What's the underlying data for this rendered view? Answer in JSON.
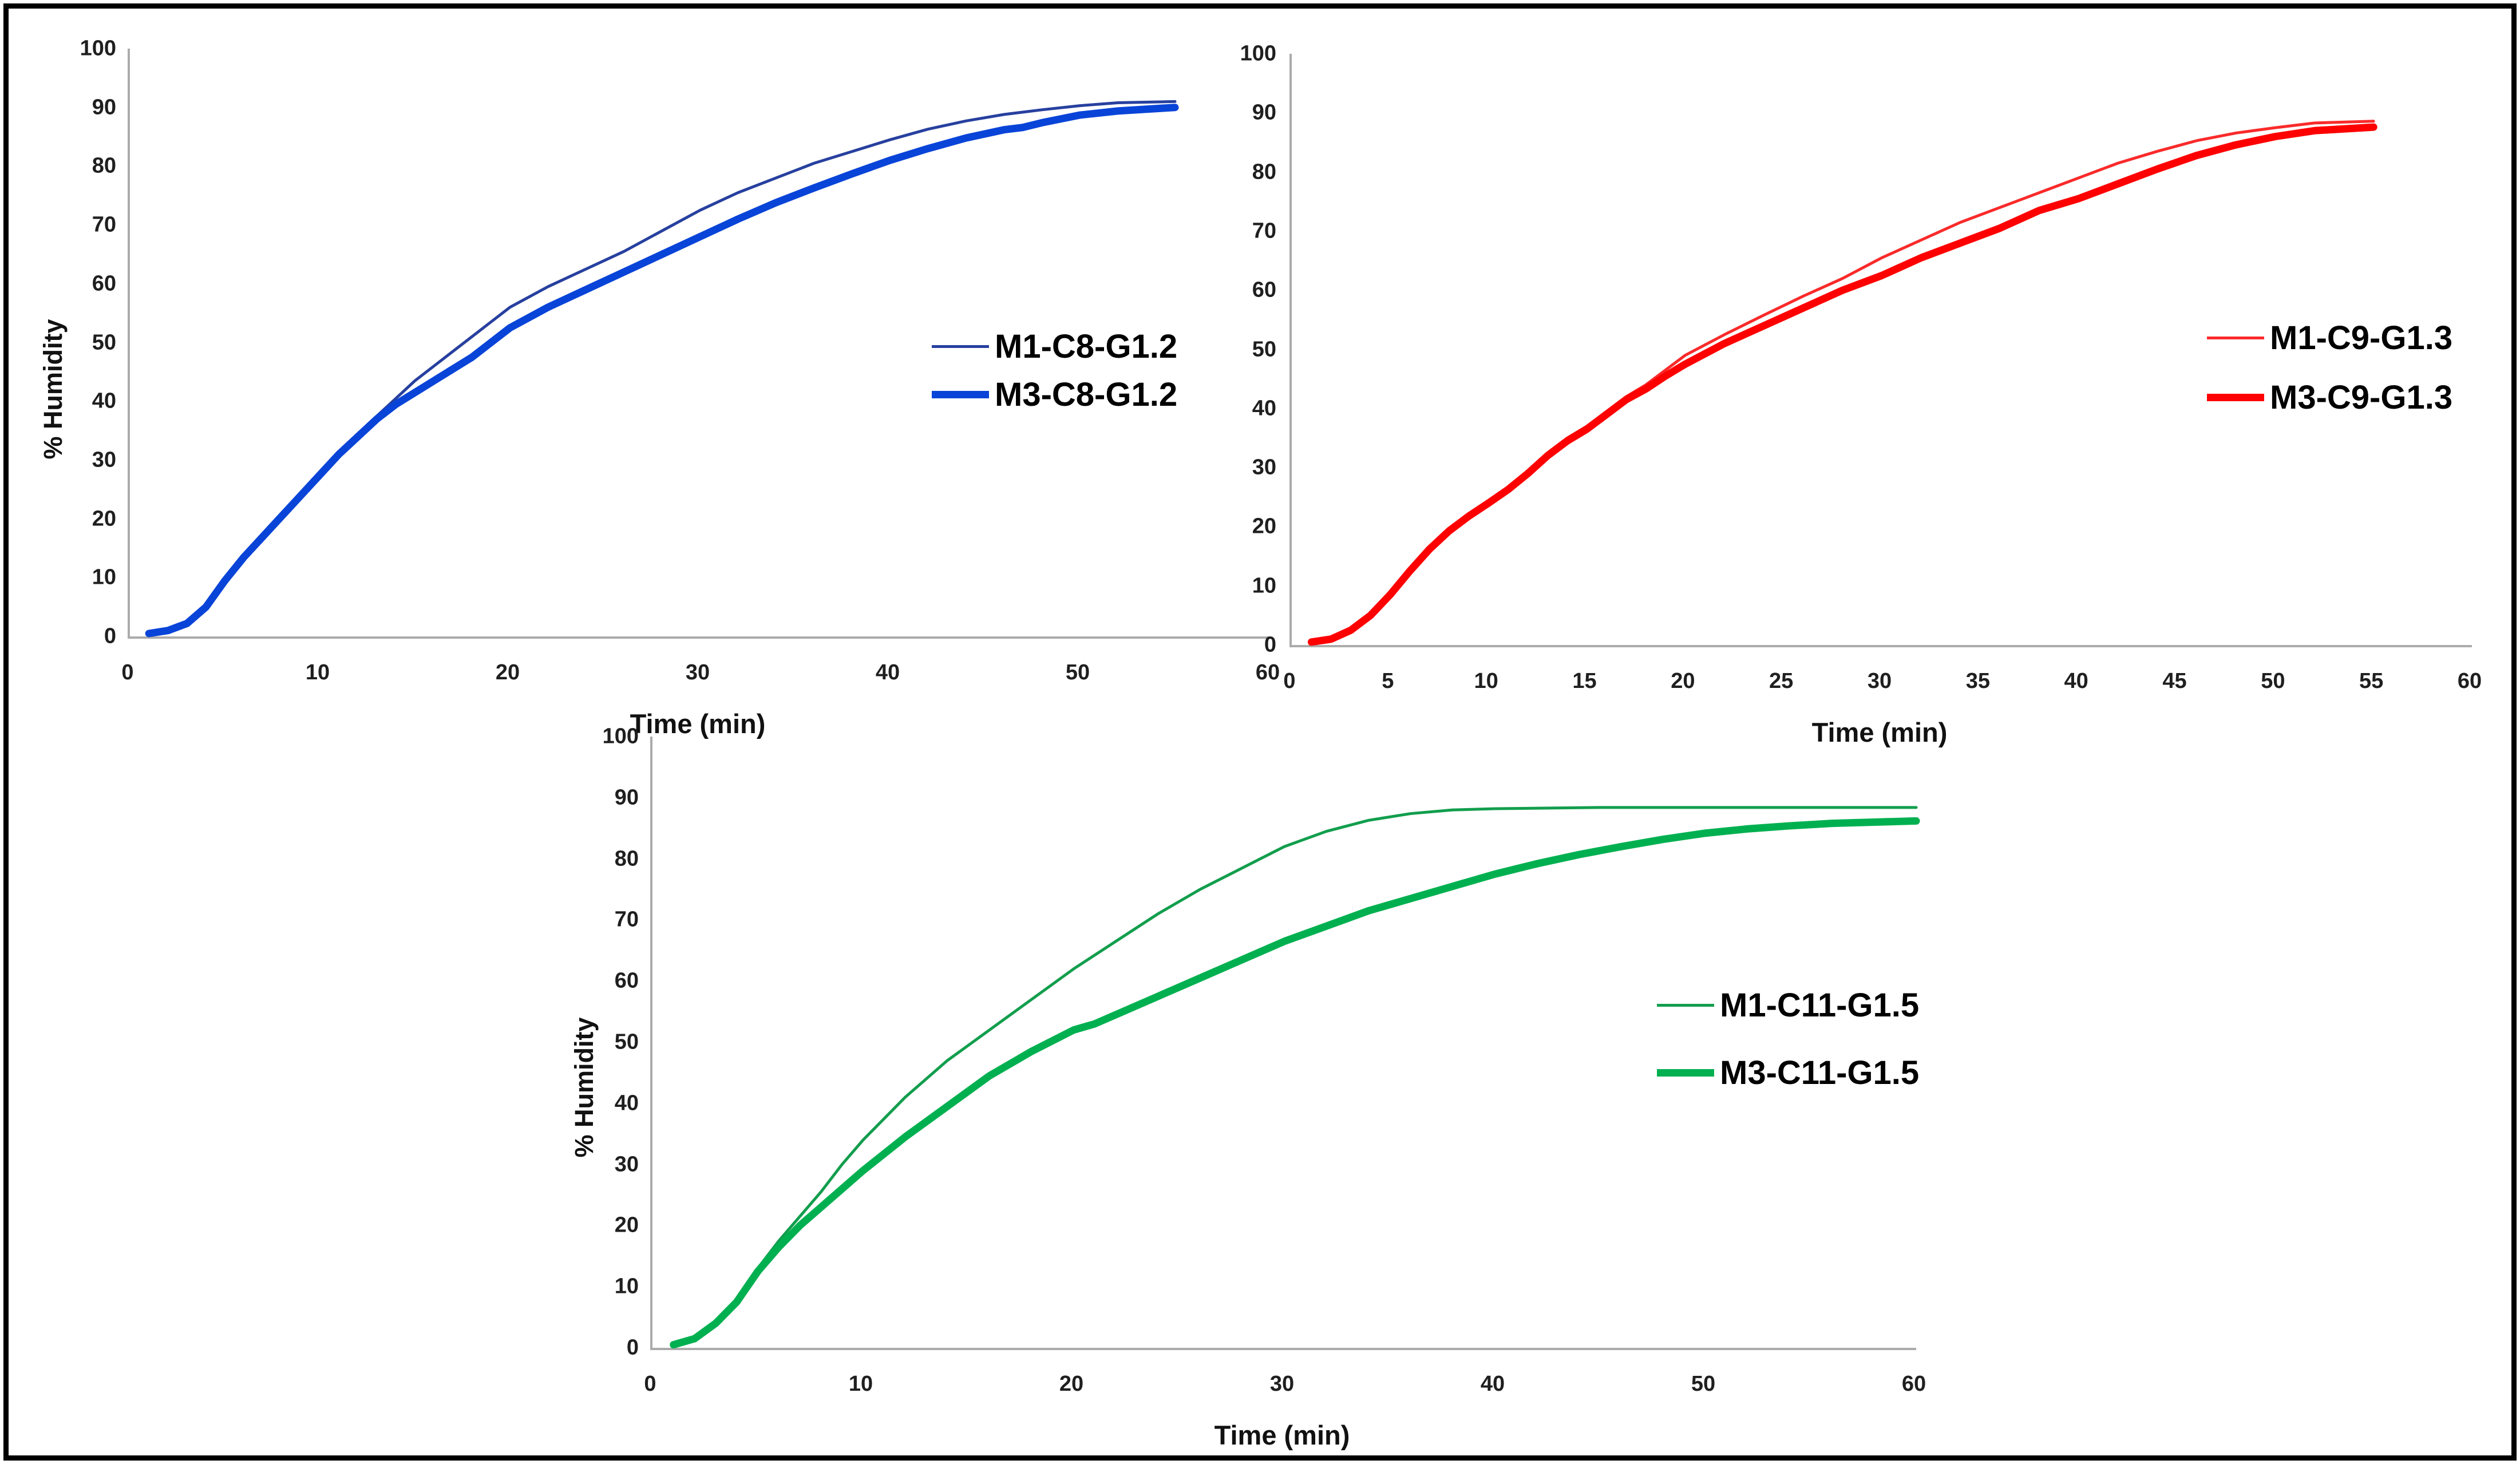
{
  "frame": {
    "border_color": "#000000",
    "background": "#ffffff"
  },
  "chart_data": [
    {
      "type": "line",
      "position": "top-left",
      "title": "",
      "xlabel": "Time (min)",
      "ylabel": "% Humidity",
      "xlim": [
        0,
        60
      ],
      "ylim": [
        0,
        100
      ],
      "xticks": [
        0,
        10,
        20,
        30,
        40,
        50,
        60
      ],
      "yticks": [
        0,
        10,
        20,
        30,
        40,
        50,
        60,
        70,
        80,
        90,
        100
      ],
      "grid": false,
      "axis_color": "#ABABAB",
      "legend_position": "right-inside",
      "series": [
        {
          "name": "M1-C8-G1.2",
          "color": "#27409F",
          "width": 5,
          "x": [
            1,
            2,
            3,
            4,
            5,
            6,
            7,
            8,
            9,
            10,
            11,
            12,
            13,
            14,
            15,
            16,
            17,
            18,
            19,
            20,
            22,
            24,
            26,
            28,
            30,
            32,
            34,
            36,
            38,
            40,
            42,
            44,
            46,
            48,
            50,
            52,
            55
          ],
          "y": [
            0.5,
            1,
            2,
            4.5,
            9,
            13,
            16.5,
            20,
            23.5,
            27,
            31,
            34.5,
            37.5,
            40.5,
            43.5,
            46,
            48.5,
            51,
            53.5,
            56,
            59.5,
            62.5,
            65.5,
            69,
            72.5,
            75.5,
            78,
            80.5,
            82.5,
            84.5,
            86.3,
            87.7,
            88.8,
            89.6,
            90.3,
            90.8,
            91
          ]
        },
        {
          "name": "M3-C8-G1.2",
          "color": "#0944D8",
          "width": 13,
          "x": [
            1,
            2,
            3,
            4,
            5,
            6,
            7,
            8,
            9,
            10,
            11,
            12,
            13,
            14,
            15,
            16,
            17,
            18,
            19,
            20,
            22,
            24,
            26,
            28,
            30,
            32,
            34,
            36,
            38,
            40,
            42,
            44,
            46,
            47,
            48,
            50,
            52,
            55
          ],
          "y": [
            0.5,
            1,
            2.2,
            5,
            9.5,
            13.5,
            17,
            20.5,
            24,
            27.5,
            31,
            34,
            37,
            39.5,
            41.5,
            43.5,
            45.5,
            47.5,
            50,
            52.5,
            56,
            59,
            62,
            65,
            68,
            71,
            73.8,
            76.3,
            78.7,
            81,
            83,
            84.8,
            86.2,
            86.6,
            87.4,
            88.7,
            89.4,
            90
          ]
        }
      ]
    },
    {
      "type": "line",
      "position": "top-right",
      "title": "",
      "xlabel": "Time (min)",
      "ylabel": "",
      "xlim": [
        0,
        60
      ],
      "ylim": [
        0,
        100
      ],
      "xticks": [
        0,
        5,
        10,
        15,
        20,
        25,
        30,
        35,
        40,
        45,
        50,
        55,
        60
      ],
      "yticks": [
        0,
        10,
        20,
        30,
        40,
        50,
        60,
        70,
        80,
        90,
        100
      ],
      "grid": false,
      "axis_color": "#ABABAB",
      "legend_position": "right-inside",
      "series": [
        {
          "name": "M1-C9-G1.3",
          "color": "#FA2A2A",
          "width": 5,
          "x": [
            1,
            2,
            3,
            4,
            5,
            6,
            7,
            8,
            9,
            10,
            11,
            12,
            13,
            14,
            15,
            16,
            17,
            18,
            19,
            20,
            22,
            24,
            26,
            28,
            30,
            32,
            34,
            36,
            38,
            40,
            42,
            44,
            46,
            48,
            50,
            52,
            55
          ],
          "y": [
            0.5,
            1,
            2.5,
            5,
            8.5,
            12.5,
            16,
            19,
            21.5,
            24,
            26.5,
            29.5,
            32.5,
            35,
            37,
            39.5,
            42,
            44,
            46.5,
            49,
            52.5,
            55.8,
            59,
            62,
            65.5,
            68.5,
            71.5,
            74,
            76.5,
            79,
            81.5,
            83.5,
            85.3,
            86.6,
            87.5,
            88.3,
            88.6
          ]
        },
        {
          "name": "M3-C9-G1.3",
          "color": "#FE0000",
          "width": 13,
          "x": [
            1,
            2,
            3,
            4,
            5,
            6,
            7,
            8,
            9,
            10,
            11,
            12,
            13,
            14,
            15,
            16,
            17,
            18,
            19,
            20,
            22,
            24,
            26,
            28,
            30,
            32,
            34,
            36,
            38,
            40,
            42,
            44,
            46,
            48,
            50,
            52,
            53,
            55
          ],
          "y": [
            0.5,
            1,
            2.5,
            5,
            8.5,
            12.5,
            16.2,
            19.3,
            21.8,
            24,
            26.3,
            29,
            32,
            34.5,
            36.5,
            39,
            41.5,
            43.3,
            45.5,
            47.5,
            51,
            54,
            57,
            60,
            62.5,
            65.5,
            68,
            70.5,
            73.5,
            75.5,
            78,
            80.5,
            82.8,
            84.6,
            86,
            87,
            87.2,
            87.6
          ]
        }
      ]
    },
    {
      "type": "line",
      "position": "bottom-center",
      "title": "",
      "xlabel": "Time (min)",
      "ylabel": "% Humidity",
      "xlim": [
        0,
        60
      ],
      "ylim": [
        0,
        100
      ],
      "xticks": [
        0,
        10,
        20,
        30,
        40,
        50,
        60
      ],
      "yticks": [
        0,
        10,
        20,
        30,
        40,
        50,
        60,
        70,
        80,
        90,
        100
      ],
      "grid": false,
      "axis_color": "#ABABAB",
      "legend_position": "right-inside",
      "series": [
        {
          "name": "M1-C11-G1.5",
          "color": "#129E4D",
          "width": 5,
          "x": [
            1,
            2,
            3,
            4,
            5,
            6,
            7,
            8,
            9,
            10,
            12,
            14,
            15,
            16,
            18,
            20,
            22,
            24,
            26,
            28,
            30,
            32,
            34,
            36,
            38,
            40,
            45,
            50,
            55,
            60
          ],
          "y": [
            0.5,
            1.5,
            4,
            8,
            13,
            17.5,
            21.5,
            25.5,
            30,
            34,
            41,
            47,
            49.5,
            52,
            57,
            62,
            66.5,
            71,
            75,
            78.5,
            82,
            84.5,
            86.3,
            87.4,
            88,
            88.2,
            88.4,
            88.4,
            88.4,
            88.4
          ]
        },
        {
          "name": "M3-C11-G1.5",
          "color": "#00B050",
          "width": 13,
          "x": [
            1,
            2,
            3,
            4,
            5,
            6,
            7,
            8,
            9,
            10,
            12,
            14,
            15,
            16,
            18,
            20,
            21,
            22,
            24,
            26,
            28,
            30,
            32,
            34,
            36,
            38,
            40,
            42,
            44,
            46,
            48,
            50,
            52,
            54,
            56,
            58,
            60
          ],
          "y": [
            0.5,
            1.5,
            4,
            7.5,
            12.5,
            16.5,
            20,
            23,
            26,
            29,
            34.5,
            39.5,
            42,
            44.5,
            48.5,
            52,
            53,
            54.5,
            57.5,
            60.5,
            63.5,
            66.5,
            69,
            71.5,
            73.5,
            75.5,
            77.5,
            79.2,
            80.7,
            82,
            83.2,
            84.2,
            84.9,
            85.4,
            85.8,
            86,
            86.2
          ]
        }
      ]
    }
  ]
}
